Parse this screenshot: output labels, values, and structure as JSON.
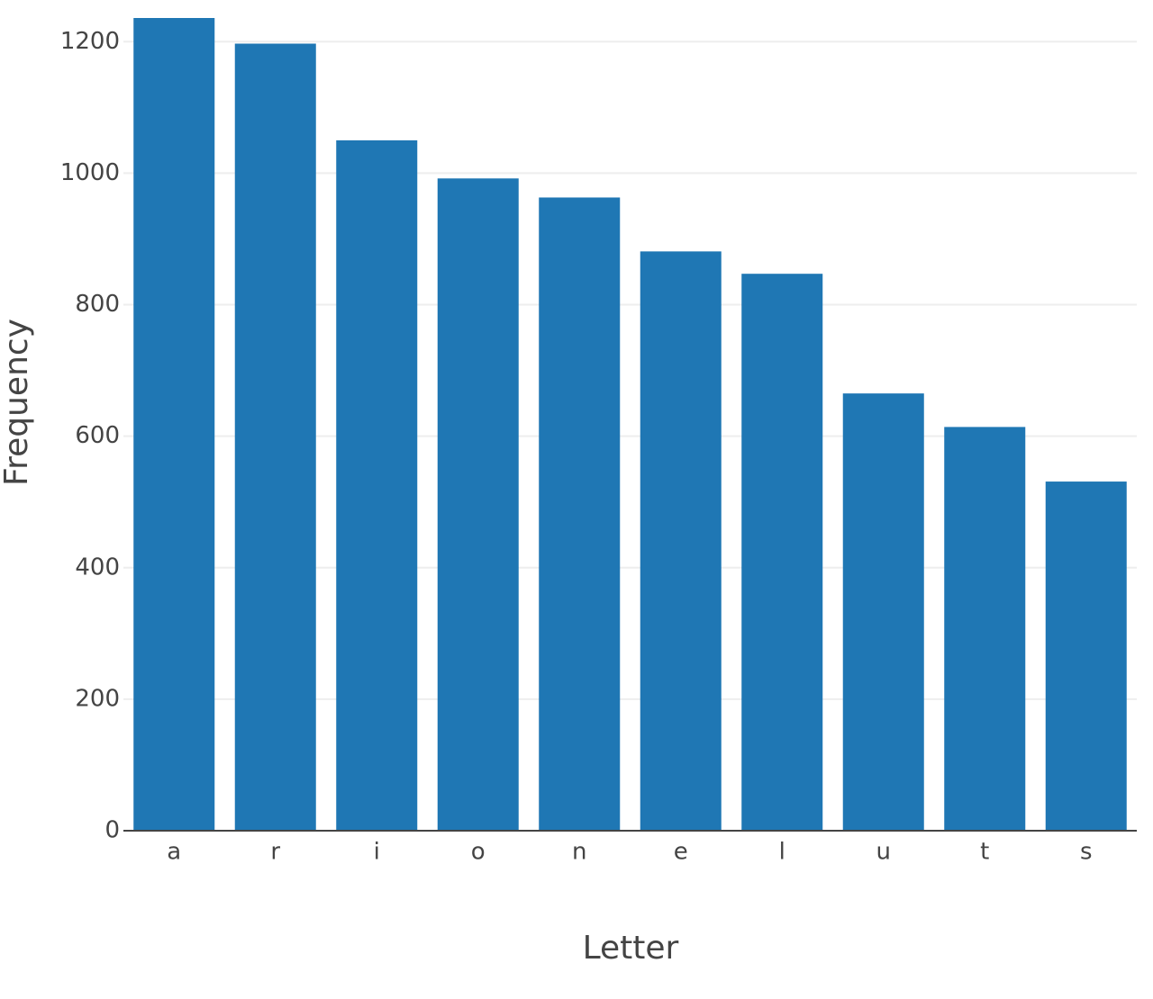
{
  "chart_data": {
    "type": "bar",
    "x_label": "Letter",
    "y_label": "Frequency",
    "categories": [
      "a",
      "r",
      "i",
      "o",
      "n",
      "e",
      "l",
      "u",
      "t",
      "s"
    ],
    "values": [
      1236,
      1197,
      1050,
      992,
      963,
      881,
      847,
      665,
      614,
      531
    ],
    "color": "#1f77b4",
    "ylim": [
      0,
      1236
    ],
    "yticks": [
      0,
      200,
      400,
      600,
      800,
      1000,
      1200
    ],
    "grid": true
  }
}
